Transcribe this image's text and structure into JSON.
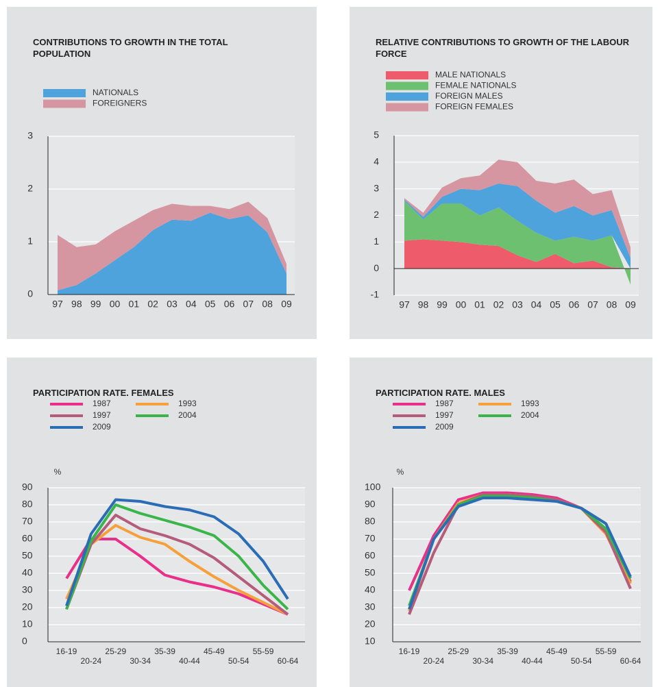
{
  "chart_data": [
    {
      "type": "area",
      "title": "CONTRIBUTIONS TO GROWTH IN THE TOTAL POPULATION",
      "categories": [
        "97",
        "98",
        "99",
        "00",
        "01",
        "02",
        "03",
        "04",
        "05",
        "06",
        "07",
        "08",
        "09"
      ],
      "series": [
        {
          "name": "NATIONALS",
          "color": "#4fa3dc",
          "values": [
            0.08,
            0.18,
            0.4,
            0.65,
            0.9,
            1.22,
            1.42,
            1.4,
            1.55,
            1.43,
            1.5,
            1.18,
            0.4
          ]
        },
        {
          "name": "FOREIGNERS",
          "color": "#d596a2",
          "values": [
            1.05,
            0.72,
            0.55,
            0.55,
            0.5,
            0.38,
            0.3,
            0.28,
            0.13,
            0.19,
            0.26,
            0.27,
            0.18
          ]
        }
      ],
      "ylim": [
        0,
        3
      ],
      "yticks": [
        0,
        1,
        2,
        3
      ],
      "grid": true,
      "stacked": true
    },
    {
      "type": "area",
      "title": "RELATIVE CONTRIBUTIONS TO GROWTH OF THE LABOUR FORCE",
      "categories": [
        "97",
        "98",
        "99",
        "00",
        "01",
        "02",
        "03",
        "04",
        "05",
        "06",
        "07",
        "08",
        "09"
      ],
      "series": [
        {
          "name": "MALE NATIONALS",
          "color": "#ee5b6b",
          "values": [
            1.05,
            1.1,
            1.05,
            1.0,
            0.9,
            0.85,
            0.5,
            0.25,
            0.55,
            0.2,
            0.3,
            0.05,
            0
          ]
        },
        {
          "name": "FEMALE NATIONALS",
          "color": "#6cc070",
          "values": [
            1.5,
            0.75,
            1.4,
            1.45,
            1.1,
            1.45,
            1.3,
            1.1,
            0.5,
            1.0,
            0.75,
            1.2,
            -0.6
          ]
        },
        {
          "name": "FOREIGN MALES",
          "color": "#4fa3dc",
          "values": [
            0.05,
            0.1,
            0.25,
            0.55,
            0.95,
            0.9,
            1.3,
            1.2,
            1.05,
            1.15,
            0.95,
            0.95,
            0.4
          ]
        },
        {
          "name": "FOREIGN FEMALES",
          "color": "#d596a2",
          "values": [
            0.05,
            0.15,
            0.35,
            0.4,
            0.55,
            0.9,
            0.9,
            0.75,
            1.1,
            1.0,
            0.8,
            0.75,
            0.4
          ]
        }
      ],
      "ylim": [
        -1,
        5
      ],
      "yticks": [
        -1,
        0,
        1,
        2,
        3,
        4,
        5
      ],
      "grid": true,
      "stacked": true
    },
    {
      "type": "line",
      "title": "PARTICIPATION RATE. FEMALES",
      "y_label": "%",
      "categories": [
        "16-19",
        "20-24",
        "25-29",
        "30-34",
        "35-39",
        "40-44",
        "45-49",
        "50-54",
        "55-59",
        "60-64"
      ],
      "series": [
        {
          "name": "1987",
          "color": "#e8308a",
          "values": [
            37,
            60,
            60,
            50,
            39,
            35,
            32,
            28,
            22,
            16
          ]
        },
        {
          "name": "1993",
          "color": "#f5a03a",
          "values": [
            25,
            57,
            68,
            61,
            57,
            47,
            38,
            30,
            23,
            16
          ]
        },
        {
          "name": "1997",
          "color": "#b45c7a",
          "values": [
            19,
            57,
            74,
            66,
            62,
            57,
            49,
            38,
            27,
            16
          ]
        },
        {
          "name": "2004",
          "color": "#3ab54a",
          "values": [
            19,
            59,
            80,
            75,
            71,
            67,
            62,
            50,
            33,
            19
          ]
        },
        {
          "name": "2009",
          "color": "#2a6db5",
          "values": [
            21,
            63,
            83,
            82,
            79,
            77,
            73,
            63,
            47,
            25
          ]
        }
      ],
      "ylim": [
        0,
        90
      ],
      "yticks": [
        0,
        10,
        20,
        30,
        40,
        50,
        60,
        70,
        80,
        90
      ],
      "grid": true
    },
    {
      "type": "line",
      "title": "PARTICIPATION RATE. MALES",
      "y_label": "%",
      "categories": [
        "16-19",
        "20-24",
        "25-29",
        "30-34",
        "35-39",
        "40-44",
        "45-49",
        "50-54",
        "55-59",
        "60-64"
      ],
      "series": [
        {
          "name": "1987",
          "color": "#e8308a",
          "values": [
            40,
            72,
            93,
            97,
            97,
            96,
            94,
            88,
            75,
            45
          ]
        },
        {
          "name": "1993",
          "color": "#f5a03a",
          "values": [
            28,
            70,
            91,
            96,
            96,
            95,
            93,
            88,
            73,
            44
          ]
        },
        {
          "name": "1997",
          "color": "#b45c7a",
          "values": [
            26,
            62,
            90,
            96,
            96,
            95,
            93,
            88,
            74,
            41
          ]
        },
        {
          "name": "2004",
          "color": "#3ab54a",
          "values": [
            31,
            70,
            90,
            95,
            95,
            94,
            92,
            88,
            76,
            47
          ]
        },
        {
          "name": "2009",
          "color": "#2a6db5",
          "values": [
            29,
            70,
            89,
            94,
            94,
            93,
            92,
            88,
            79,
            48
          ]
        }
      ],
      "ylim": [
        10,
        100
      ],
      "yticks": [
        10,
        20,
        30,
        40,
        50,
        60,
        70,
        80,
        90,
        100
      ],
      "grid": true
    }
  ]
}
